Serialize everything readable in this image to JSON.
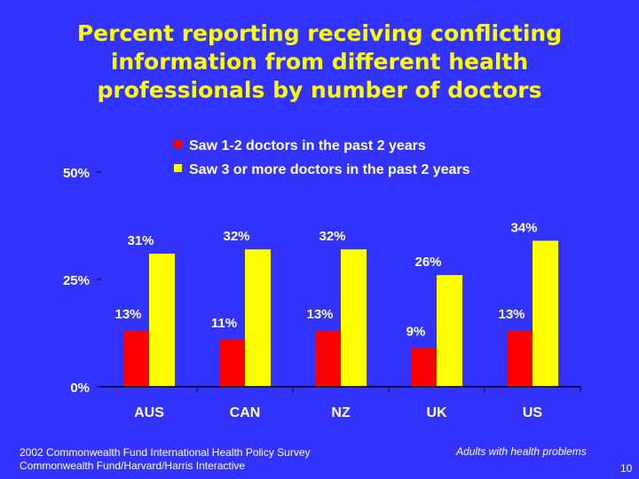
{
  "title_lines": [
    "Percent reporting receiving conflicting",
    "information from different health",
    "professionals by number of doctors"
  ],
  "chart_data": {
    "type": "bar",
    "title": "Percent reporting receiving conflicting information from different health professionals by number of doctors",
    "xlabel": "",
    "ylabel": "",
    "ylim": [
      0,
      50
    ],
    "yticks": [
      {
        "value": 0,
        "label": "0%"
      },
      {
        "value": 25,
        "label": "25%"
      },
      {
        "value": 50,
        "label": "50%"
      }
    ],
    "categories": [
      "AUS",
      "CAN",
      "NZ",
      "UK",
      "US"
    ],
    "series": [
      {
        "name": "Saw 1-2 doctors in the past 2 years",
        "color": "#ff0000",
        "values": [
          13,
          11,
          13,
          9,
          13
        ],
        "labels": [
          "13%",
          "11%",
          "13%",
          "9%",
          "13%"
        ]
      },
      {
        "name": "Saw 3 or more doctors in the past 2 years",
        "color": "#ffff00",
        "values": [
          31,
          32,
          32,
          26,
          34
        ],
        "labels": [
          "31%",
          "32%",
          "32%",
          "26%",
          "34%"
        ]
      }
    ],
    "legend_position": "top-right",
    "grid": false
  },
  "footer": {
    "source_lines": [
      "2002 Commonwealth Fund International Health Policy Survey",
      "Commonwealth Fund/Harvard/Harris Interactive"
    ],
    "note": "Adults with health problems",
    "page_number": "10"
  },
  "colors": {
    "background": "#3333ff",
    "title": "#ffff00",
    "text": "#ffffff"
  }
}
